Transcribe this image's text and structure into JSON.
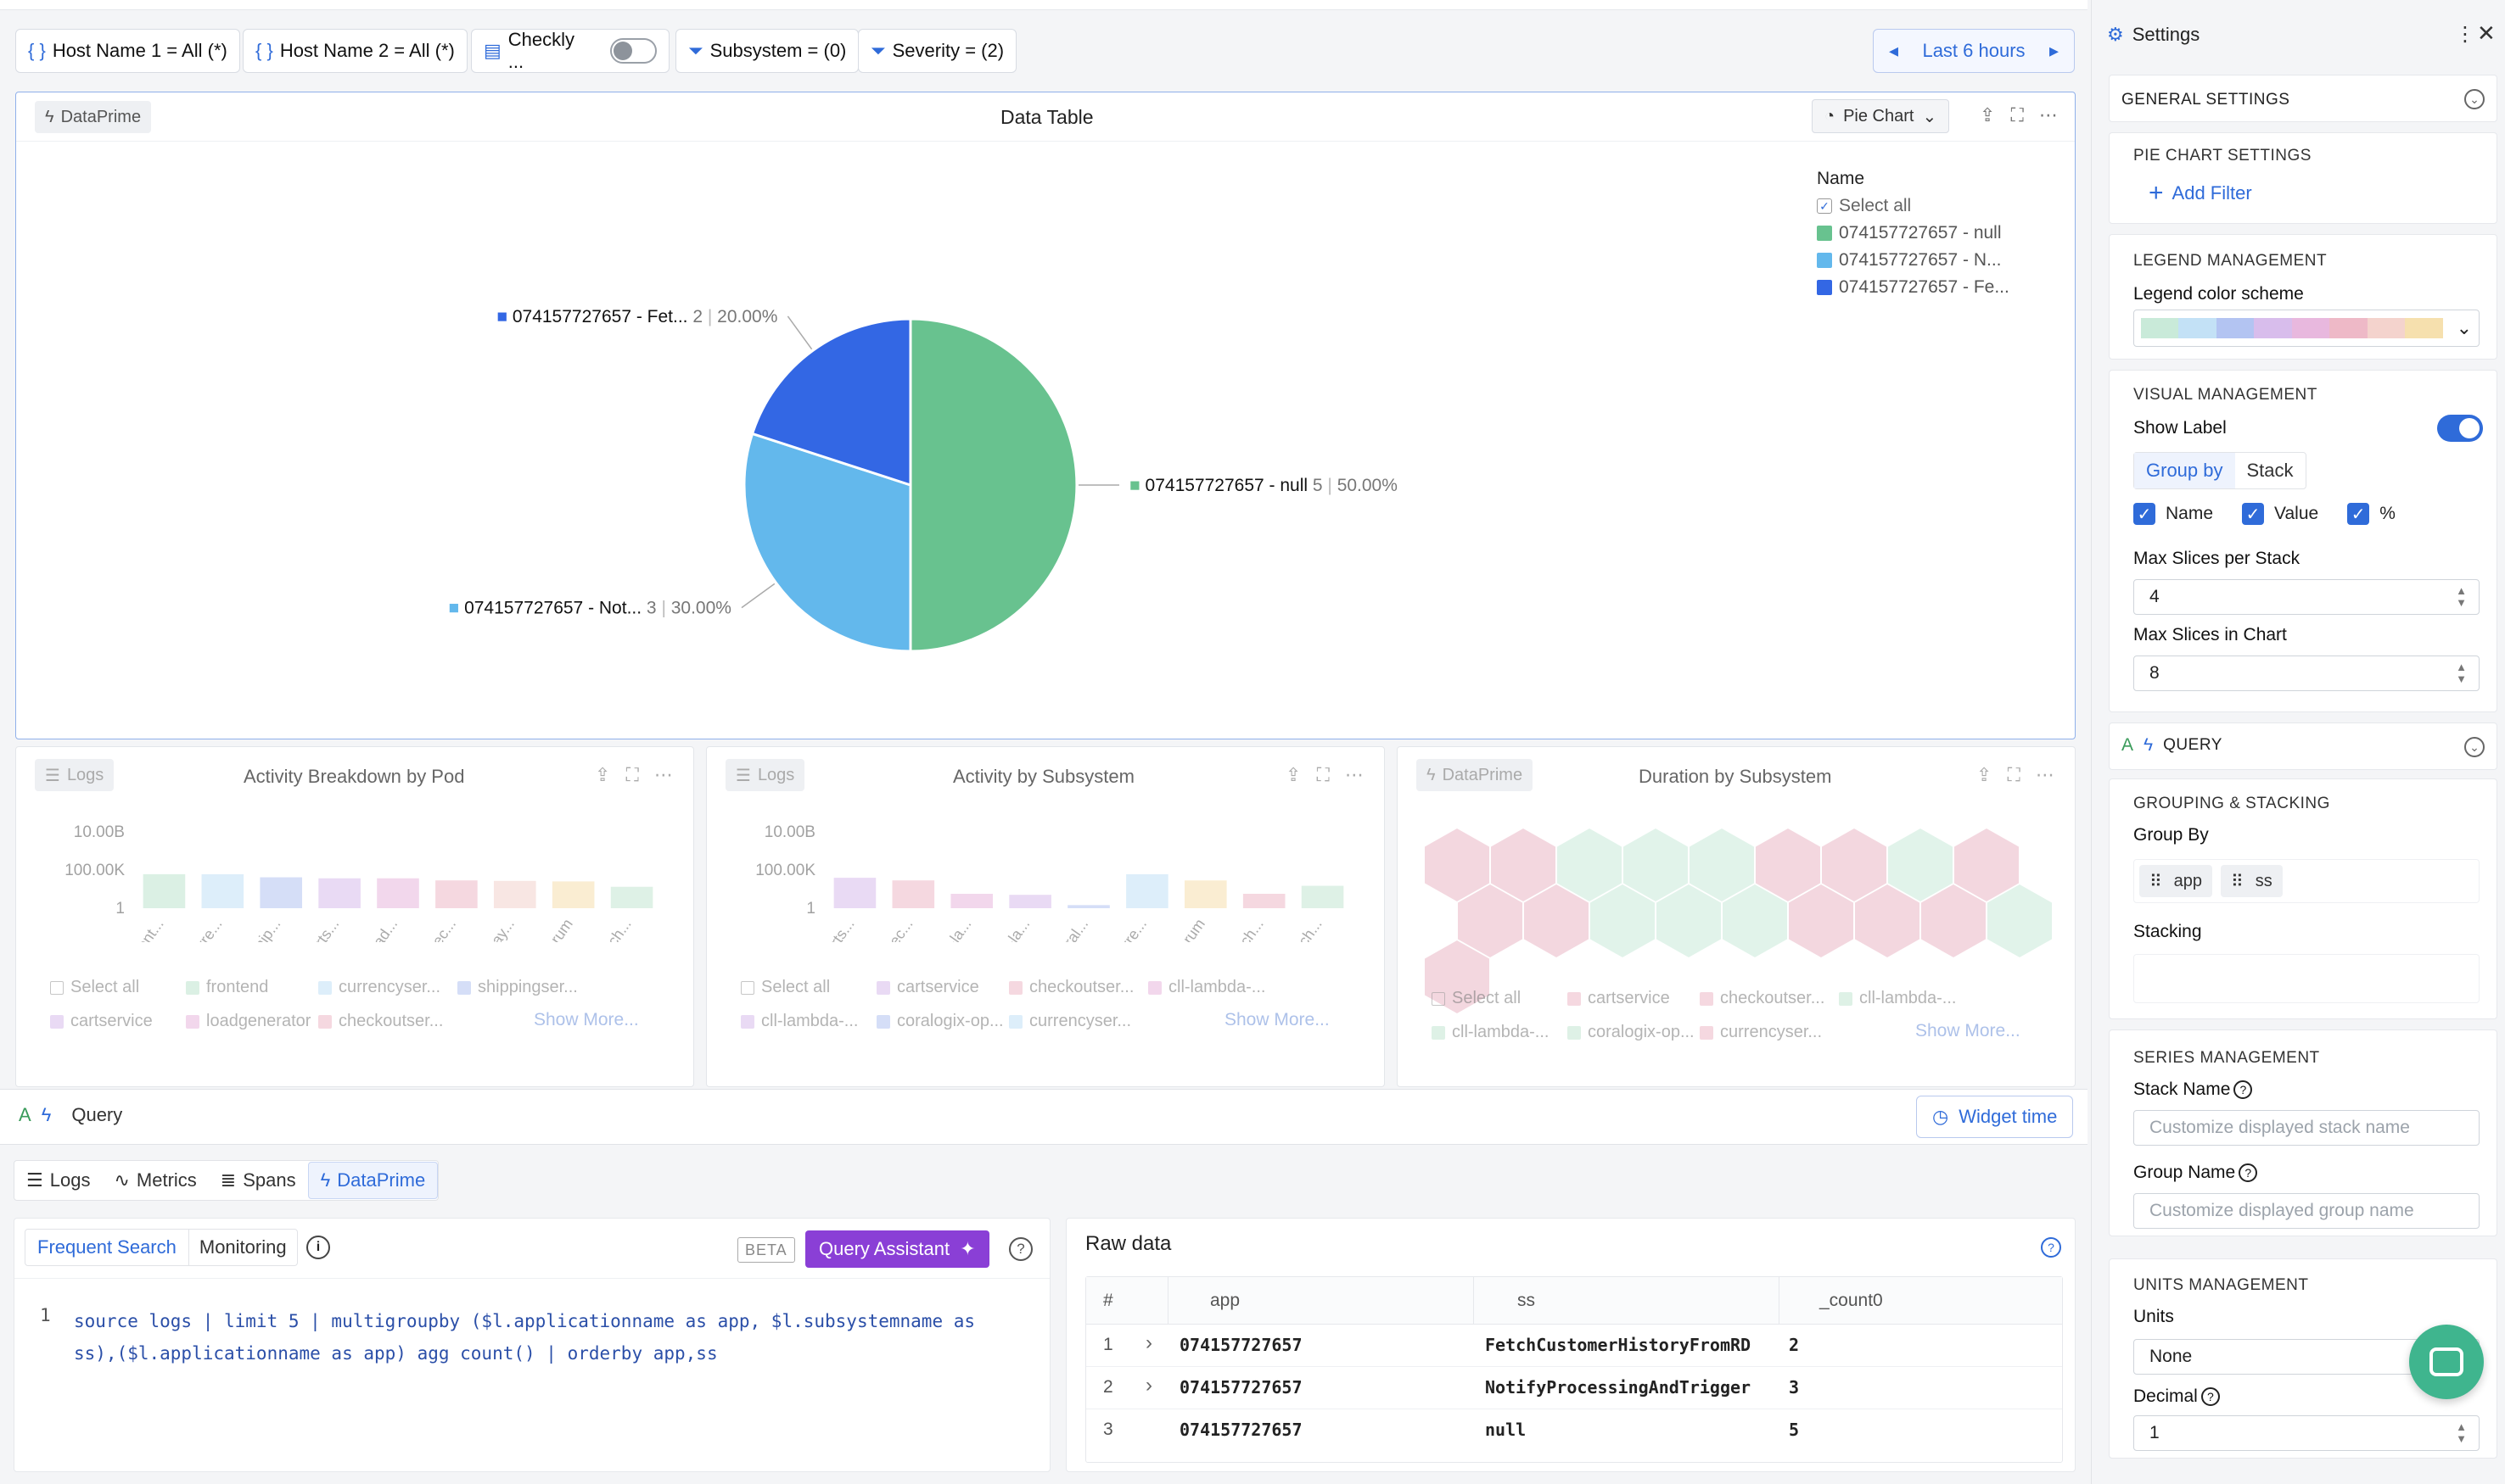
{
  "filters": {
    "host1": "Host Name 1 = All (*)",
    "host2": "Host Name 2 = All (*)",
    "checkly": "Checkly ...",
    "subsystem": "Subsystem = (0)",
    "severity": "Severity = (2)",
    "time_range": "Last 6 hours"
  },
  "main_panel": {
    "badge": "DataPrime",
    "title": "Data Table",
    "chart_type": "Pie Chart",
    "legend_title": "Name",
    "legend_select_all": "Select all",
    "legend_items": [
      "074157727657 - null",
      "074157727657 - N...",
      "074157727657 - Fe..."
    ],
    "slice_labels": [
      {
        "name": "074157727657 - Fet...",
        "value": "2",
        "pct": "20.00%"
      },
      {
        "name": "074157727657 - null",
        "value": "5",
        "pct": "50.00%"
      },
      {
        "name": "074157727657 - Not...",
        "value": "3",
        "pct": "30.00%"
      }
    ]
  },
  "chart_data": [
    {
      "type": "pie",
      "title": "Data Table",
      "labels": [
        "074157727657 - null",
        "074157727657 - Not...",
        "074157727657 - Fet..."
      ],
      "values": [
        5,
        3,
        2
      ],
      "percents": [
        50.0,
        30.0,
        20.0
      ],
      "colors": [
        "#68c28f",
        "#63b8ec",
        "#3367e4"
      ],
      "legend_position": "top-right"
    },
    {
      "type": "bar",
      "title": "Activity Breakdown by Pod",
      "categories": [
        "front...",
        "curre...",
        "ship...",
        "carts...",
        "load...",
        "chec...",
        "pay...",
        "cx_rum",
        "fetch..."
      ],
      "values": [
        2000,
        2000,
        1000,
        800,
        800,
        500,
        450,
        400,
        120
      ],
      "yscale": "log",
      "yticks": [
        "10.00B",
        "100.00K",
        "1"
      ],
      "colors": [
        "#bfe4cf",
        "#c3e1f6",
        "#b3c4f2",
        "#d8bdec",
        "#e8b8de",
        "#eeb9c7",
        "#f4d3cd",
        "#f6e0ae",
        "#c4e7d2"
      ]
    },
    {
      "type": "bar",
      "title": "Activity by Subsystem",
      "categories": [
        "carts...",
        "chec...",
        "cll-la...",
        "cll-la...",
        "coral...",
        "curre...",
        "cx_rum",
        "fetch...",
        "fetch..."
      ],
      "values": [
        900,
        500,
        25,
        20,
        2,
        2000,
        500,
        25,
        150
      ],
      "yscale": "log",
      "yticks": [
        "10.00B",
        "100.00K",
        "1"
      ],
      "colors": [
        "#d8bdec",
        "#eeb9c7",
        "#e8b8de",
        "#d8bdec",
        "#b3c4f2",
        "#c3e1f6",
        "#f6e0ae",
        "#eeb9c7",
        "#c4e7d2"
      ]
    }
  ],
  "small_panels": [
    {
      "badge": "Logs",
      "title": "Activity Breakdown by Pod",
      "legend": [
        {
          "label": "Select all",
          "color": ""
        },
        {
          "label": "frontend",
          "color": "#bfe4cf"
        },
        {
          "label": "currencyser...",
          "color": "#c3e1f6"
        },
        {
          "label": "shippingser...",
          "color": "#b3c4f2"
        },
        {
          "label": "cartservice",
          "color": "#d8bdec"
        },
        {
          "label": "loadgenerator",
          "color": "#e8b8de"
        },
        {
          "label": "checkoutser...",
          "color": "#eeb9c7"
        }
      ],
      "show_more": "Show More..."
    },
    {
      "badge": "Logs",
      "title": "Activity by Subsystem",
      "legend": [
        {
          "label": "Select all",
          "color": ""
        },
        {
          "label": "cartservice",
          "color": "#d8bdec"
        },
        {
          "label": "checkoutser...",
          "color": "#eeb9c7"
        },
        {
          "label": "cll-lambda-...",
          "color": "#e8b8de"
        },
        {
          "label": "cll-lambda-...",
          "color": "#d8bdec"
        },
        {
          "label": "coralogix-op...",
          "color": "#b3c4f2"
        },
        {
          "label": "currencyser...",
          "color": "#c3e1f6"
        }
      ],
      "show_more": "Show More..."
    },
    {
      "badge": "DataPrime",
      "title": "Duration by Subsystem",
      "legend": [
        {
          "label": "Select all",
          "color": ""
        },
        {
          "label": "cartservice",
          "color": "#eeb9c7"
        },
        {
          "label": "checkoutser...",
          "color": "#eeb9c7"
        },
        {
          "label": "cll-lambda-...",
          "color": "#c4e7d2"
        },
        {
          "label": "cll-lambda-...",
          "color": "#c4e7d2"
        },
        {
          "label": "coralogix-op...",
          "color": "#c4e7d2"
        },
        {
          "label": "currencyser...",
          "color": "#eeb9c7"
        }
      ],
      "show_more": "Show More...",
      "hexagons": [
        "#eab8c6",
        "#eab8c6",
        "#c9ead9",
        "#c9ead9",
        "#c9ead9",
        "#eab8c6",
        "#eab8c6",
        "#c9ead9",
        "#eab8c6",
        "#eab8c6",
        "#eab8c6",
        "#c9ead9",
        "#c9ead9",
        "#c9ead9",
        "#eab8c6",
        "#eab8c6",
        "#eab8c6",
        "#c9ead9",
        "#eab8c6"
      ]
    }
  ],
  "query": {
    "label": "Query",
    "widget_time": "Widget time",
    "tabs": [
      "Logs",
      "Metrics",
      "Spans",
      "DataPrime"
    ],
    "active_tab": "DataPrime",
    "subtabs": [
      "Frequent Search",
      "Monitoring"
    ],
    "beta": "BETA",
    "assistant": "Query Assistant",
    "line_number": "1",
    "code_line1": "source logs | limit 5 | multigroupby ($l.applicationname as app, $l.subsystemname as",
    "code_line2": "ss),($l.applicationname as app) agg count() | orderby app,ss"
  },
  "raw_data": {
    "title": "Raw data",
    "columns": [
      "#",
      "app",
      "ss",
      "_count0"
    ],
    "rows": [
      {
        "num": "1",
        "app": "074157727657",
        "ss": "FetchCustomerHistoryFromRD",
        "count": "2"
      },
      {
        "num": "2",
        "app": "074157727657",
        "ss": "NotifyProcessingAndTrigger",
        "count": "3"
      },
      {
        "num": "3",
        "app": "074157727657",
        "ss": "null",
        "count": "5"
      }
    ]
  },
  "settings": {
    "title": "Settings",
    "general": "GENERAL SETTINGS",
    "pie_settings": "PIE CHART SETTINGS",
    "add_filter": "Add Filter",
    "legend_mgmt": "LEGEND MANAGEMENT",
    "legend_scheme_label": "Legend color scheme",
    "scheme_colors": [
      "#c9ead9",
      "#c3e1f6",
      "#b3c4f2",
      "#d8bdec",
      "#e8b8de",
      "#eeb9c7",
      "#f4d3cd",
      "#f6e0ae"
    ],
    "visual_mgmt": "VISUAL MANAGEMENT",
    "show_label": "Show Label",
    "group_by_btn": "Group by",
    "stack_btn": "Stack",
    "cb_name": "Name",
    "cb_value": "Value",
    "cb_pct": "%",
    "max_slices_stack_label": "Max Slices per Stack",
    "max_slices_stack": "4",
    "max_slices_chart_label": "Max Slices in Chart",
    "max_slices_chart": "8",
    "query_section": "QUERY",
    "grouping": "GROUPING & STACKING",
    "group_by_label": "Group By",
    "group_tags": [
      "app",
      "ss"
    ],
    "stacking_label": "Stacking",
    "series_mgmt": "SERIES MANAGEMENT",
    "stack_name_label": "Stack Name",
    "stack_name_ph": "Customize displayed stack name",
    "group_name_label": "Group Name",
    "group_name_ph": "Customize displayed group name",
    "units_mgmt": "UNITS MANAGEMENT",
    "units_label": "Units",
    "units_value": "None",
    "decimal_label": "Decimal",
    "decimal_value": "1"
  }
}
